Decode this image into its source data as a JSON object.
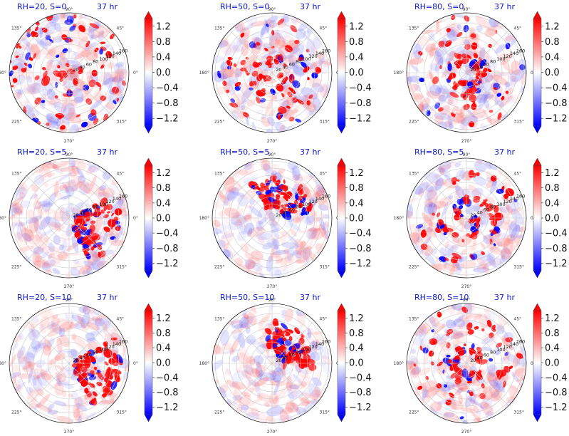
{
  "colors": {
    "positive": "#ff0000",
    "negative": "#0000ff",
    "neutral": "#ffffff",
    "title": "#0a18c8"
  },
  "chart_data": {
    "type": "heatmap",
    "layout": {
      "rows": 3,
      "cols": 3
    },
    "projection": "polar",
    "colormap": "bwr",
    "colorbar": {
      "ticks": [
        "1.2",
        "0.8",
        "0.4",
        "0.0",
        "−0.4",
        "−0.8",
        "−1.2"
      ],
      "range": [
        -1.4,
        1.4
      ],
      "extend": "both"
    },
    "azimuth_labels": [
      "0°",
      "45°",
      "90°",
      "135°",
      "180°",
      "225°",
      "270°",
      "315°"
    ],
    "radial_labels": [
      "20",
      "40",
      "60",
      "80",
      "100",
      "120",
      "140",
      "160"
    ],
    "panels": [
      {
        "title": "RH=20, S=0",
        "time": "37 hr",
        "pattern": "scattered",
        "angle": 0
      },
      {
        "title": "RH=50, S=0",
        "time": "37 hr",
        "pattern": "spiral",
        "angle": 0
      },
      {
        "title": "RH=80, S=0",
        "time": "37 hr",
        "pattern": "ring",
        "angle": 0
      },
      {
        "title": "RH=20, S=5",
        "time": "37 hr",
        "pattern": "sector",
        "angle": 340
      },
      {
        "title": "RH=50, S=5",
        "time": "37 hr",
        "pattern": "arc",
        "angle": 30
      },
      {
        "title": "RH=80, S=5",
        "time": "37 hr",
        "pattern": "swirl",
        "angle": 0
      },
      {
        "title": "RH=20, S=10",
        "time": "37 hr",
        "pattern": "sector",
        "angle": 345
      },
      {
        "title": "RH=50, S=10",
        "time": "37 hr",
        "pattern": "arc",
        "angle": 10
      },
      {
        "title": "RH=80, S=10",
        "time": "37 hr",
        "pattern": "ring",
        "angle": 0
      }
    ]
  }
}
